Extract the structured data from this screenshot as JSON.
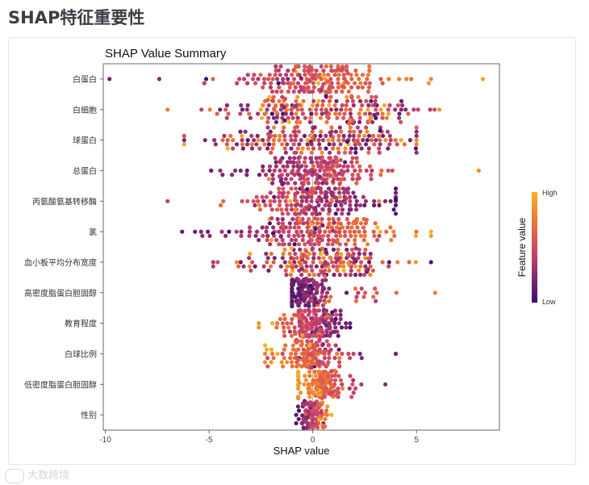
{
  "page": {
    "title": "SHAP特征重要性"
  },
  "watermark": {
    "text": "大数跨境"
  },
  "chart_data": {
    "type": "scatter",
    "subtype": "beeswarm",
    "title": "SHAP Value Summary",
    "xlabel": "SHAP value",
    "ylabel": "",
    "xlim": [
      -10.1,
      9.0
    ],
    "xticks": [
      -10,
      -5,
      0,
      5
    ],
    "zero_line": true,
    "grid": false,
    "legend": {
      "position": "right",
      "title": "Feature value",
      "high_label": "High",
      "low_label": "Low"
    },
    "colors": {
      "low": "#3b0f70",
      "mid": "#c8426e",
      "high": "#f9b221"
    },
    "features": [
      {
        "name": "白蛋白",
        "range": [
          -9.8,
          8.2
        ],
        "core": 1.2,
        "spread": 2.4,
        "n": 190,
        "center": 0.2,
        "order": 1
      },
      {
        "name": "白细胞",
        "range": [
          -7.0,
          6.1
        ],
        "core": 2.2,
        "spread": 2.8,
        "n": 190,
        "center": 0.0,
        "order": 0
      },
      {
        "name": "球蛋白",
        "range": [
          -6.2,
          5.0
        ],
        "core": 2.4,
        "spread": 2.9,
        "n": 190,
        "center": 0.2,
        "order": 0
      },
      {
        "name": "总蛋白",
        "range": [
          -4.9,
          8.0
        ],
        "core": 1.1,
        "spread": 2.3,
        "n": 190,
        "center": 0.2,
        "order": 1
      },
      {
        "name": "丙氨酸氨基转移酶",
        "range": [
          -7.0,
          4.0
        ],
        "core": 1.2,
        "spread": 2.6,
        "n": 190,
        "center": 0.1,
        "order": -1
      },
      {
        "name": "氯",
        "range": [
          -6.3,
          5.7
        ],
        "core": 1.6,
        "spread": 2.8,
        "n": 200,
        "center": 0.0,
        "order": 1
      },
      {
        "name": "血小板平均分布宽度",
        "range": [
          -4.8,
          5.7
        ],
        "core": 1.3,
        "spread": 2.4,
        "n": 180,
        "center": 0.5,
        "order": 0
      },
      {
        "name": "高密度脂蛋白胆固醇",
        "range": [
          -1.0,
          5.9
        ],
        "core": 0.4,
        "spread": 2.0,
        "n": 170,
        "center": -0.3,
        "order": 1
      },
      {
        "name": "教育程度",
        "range": [
          -2.6,
          1.8
        ],
        "core": 0.6,
        "spread": 0.9,
        "n": 170,
        "center": 0.0,
        "order": -1
      },
      {
        "name": "白球比例",
        "range": [
          -2.3,
          4.0
        ],
        "core": 0.5,
        "spread": 1.2,
        "n": 150,
        "center": -0.2,
        "order": -1
      },
      {
        "name": "低密度脂蛋白胆固醇",
        "range": [
          -0.7,
          3.5
        ],
        "core": 0.4,
        "spread": 1.0,
        "n": 150,
        "center": 0.5,
        "order": -1
      },
      {
        "name": "性别",
        "range": [
          -0.8,
          0.9
        ],
        "core": 0.3,
        "spread": 0.4,
        "n": 110,
        "center": 0.0,
        "order": 1
      }
    ]
  }
}
